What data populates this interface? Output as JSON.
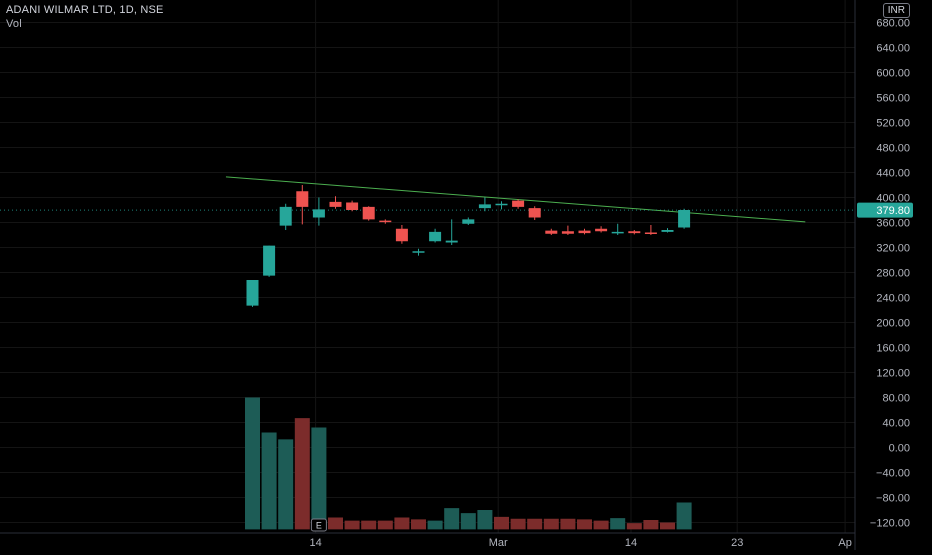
{
  "header": {
    "title_line": "ADANI WILMAR LTD, 1D, NSE",
    "volume_label": "Vol",
    "currency_button": "INR"
  },
  "colors": {
    "background": "#000000",
    "up": "#26a69a",
    "down": "#ef5350",
    "vol_up": "#1d5c56",
    "vol_down": "#7c2c2b",
    "trendline": "#4caf50",
    "axis_text": "#b2b5be",
    "price_tag": "#26a69a"
  },
  "chart_data": {
    "type": "candlestick",
    "y_axis_ticks": [
      "680.00",
      "640.00",
      "600.00",
      "560.00",
      "520.00",
      "480.00",
      "440.00",
      "400.00",
      "360.00",
      "320.00",
      "280.00",
      "240.00",
      "200.00",
      "160.00",
      "120.00",
      "80.00",
      "40.00",
      "0.00",
      "−40.00",
      "−80.00",
      "−120.00"
    ],
    "y_axis_values": [
      680,
      640,
      600,
      560,
      520,
      480,
      440,
      400,
      360,
      320,
      280,
      240,
      200,
      160,
      120,
      80,
      40,
      0,
      -40,
      -80,
      -120
    ],
    "x_axis_ticks": [
      {
        "label": "14",
        "index": 3.8
      },
      {
        "label": "Mar",
        "index": 14.8
      },
      {
        "label": "14",
        "index": 22.8
      },
      {
        "label": "23",
        "index": 29.2
      },
      {
        "label": "Ap",
        "index": 35.7
      }
    ],
    "grid": true,
    "current_price": "379.80",
    "current_price_value": 379.8,
    "earnings_marker": "E",
    "earnings_index": 4,
    "trendline": {
      "start": [
        -1.6,
        433
      ],
      "end": [
        33.3,
        361
      ]
    },
    "candles": [
      {
        "o": 227,
        "h": 268,
        "l": 225,
        "c": 268
      },
      {
        "o": 275,
        "h": 323,
        "l": 273,
        "c": 323
      },
      {
        "o": 355,
        "h": 390,
        "l": 348,
        "c": 385
      },
      {
        "o": 410,
        "h": 420,
        "l": 357,
        "c": 385
      },
      {
        "o": 368,
        "h": 400,
        "l": 355,
        "c": 381
      },
      {
        "o": 393,
        "h": 402,
        "l": 382,
        "c": 385
      },
      {
        "o": 392,
        "h": 395,
        "l": 378,
        "c": 380
      },
      {
        "o": 385,
        "h": 386,
        "l": 363,
        "c": 365
      },
      {
        "o": 363,
        "h": 365,
        "l": 358,
        "c": 362
      },
      {
        "o": 350,
        "h": 356,
        "l": 326,
        "c": 330
      },
      {
        "o": 312,
        "h": 318,
        "l": 307,
        "c": 314
      },
      {
        "o": 330,
        "h": 350,
        "l": 328,
        "c": 345
      },
      {
        "o": 328,
        "h": 365,
        "l": 324,
        "c": 331
      },
      {
        "o": 358,
        "h": 368,
        "l": 356,
        "c": 365
      },
      {
        "o": 383,
        "h": 400,
        "l": 378,
        "c": 389
      },
      {
        "o": 389,
        "h": 394,
        "l": 381,
        "c": 390
      },
      {
        "o": 395,
        "h": 397,
        "l": 382,
        "c": 385
      },
      {
        "o": 383,
        "h": 386,
        "l": 364,
        "c": 368
      },
      {
        "o": 347,
        "h": 350,
        "l": 340,
        "c": 342
      },
      {
        "o": 346,
        "h": 355,
        "l": 340,
        "c": 342
      },
      {
        "o": 347,
        "h": 350,
        "l": 341,
        "c": 343
      },
      {
        "o": 350,
        "h": 354,
        "l": 344,
        "c": 346
      },
      {
        "o": 344,
        "h": 358,
        "l": 340,
        "c": 345
      },
      {
        "o": 346,
        "h": 348,
        "l": 341,
        "c": 343
      },
      {
        "o": 344,
        "h": 356,
        "l": 340,
        "c": 342
      },
      {
        "o": 345,
        "h": 351,
        "l": 344,
        "c": 348
      },
      {
        "o": 352,
        "h": 382,
        "l": 350,
        "c": 380
      }
    ],
    "volumes": [
      80,
      24,
      13,
      47,
      32,
      -112,
      -117,
      -117,
      -117,
      -112,
      -115,
      -117,
      -97,
      -105,
      -100,
      -111,
      -114,
      -114,
      -114,
      -114,
      -115,
      -117,
      -113,
      -121,
      -116,
      -120,
      -88
    ],
    "volume_colors": [
      "up",
      "up",
      "up",
      "down",
      "up",
      "down",
      "down",
      "down",
      "down",
      "down",
      "down",
      "up",
      "up",
      "up",
      "up",
      "down",
      "down",
      "down",
      "down",
      "down",
      "down",
      "down",
      "up",
      "down",
      "down",
      "down",
      "up"
    ]
  }
}
